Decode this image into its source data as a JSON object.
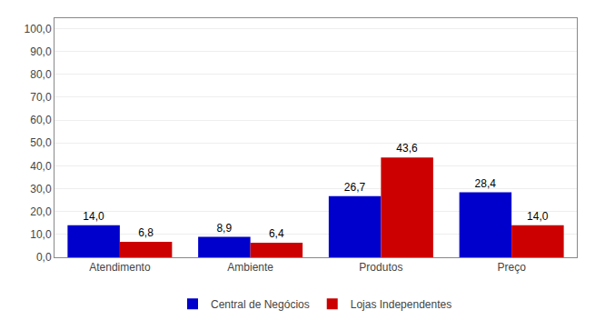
{
  "chart_data": {
    "type": "bar",
    "categories": [
      "Atendimento",
      "Ambiente",
      "Produtos",
      "Preço"
    ],
    "series": [
      {
        "name": "Central de Negócios",
        "color": "#0000CC",
        "values": [
          14.0,
          8.9,
          26.7,
          28.4
        ],
        "value_labels": [
          "14,0",
          "8,9",
          "26,7",
          "28,4"
        ]
      },
      {
        "name": "Lojas Independentes",
        "color": "#CC0000",
        "values": [
          6.8,
          6.4,
          43.6,
          14.0
        ],
        "value_labels": [
          "6,8",
          "6,4",
          "43,6",
          "14,0"
        ]
      }
    ],
    "ylim": [
      0,
      104.5
    ],
    "yticks": [
      {
        "value": 0,
        "label": "0,0"
      },
      {
        "value": 10,
        "label": "10,0"
      },
      {
        "value": 20,
        "label": "20,0"
      },
      {
        "value": 30,
        "label": "30,0"
      },
      {
        "value": 40,
        "label": "40,0"
      },
      {
        "value": 50,
        "label": "50,0"
      },
      {
        "value": 60,
        "label": "60,0"
      },
      {
        "value": 70,
        "label": "70,0"
      },
      {
        "value": 80,
        "label": "80,0"
      },
      {
        "value": 90,
        "label": "90,0"
      },
      {
        "value": 100,
        "label": "100,0"
      }
    ],
    "grid": true,
    "legend": "bottom",
    "data_labels": true
  }
}
